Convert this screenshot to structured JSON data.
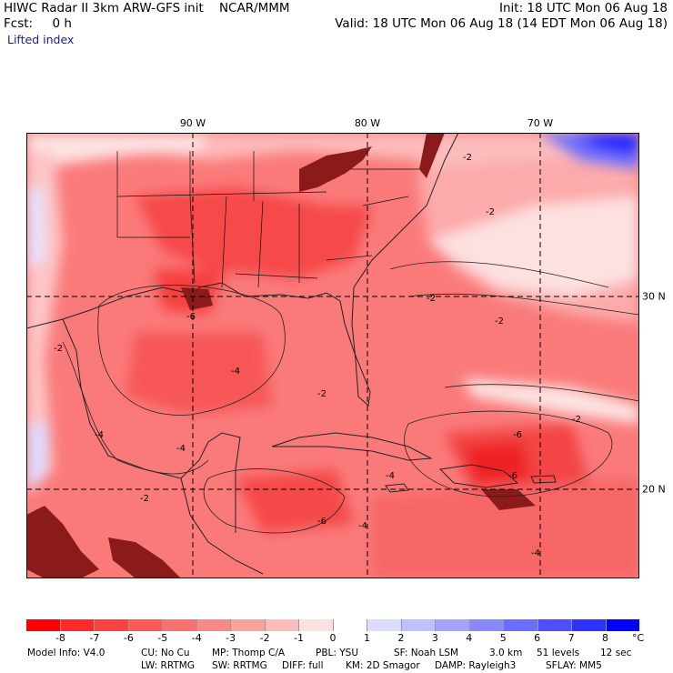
{
  "header": {
    "title_left": "HIWC Radar II 3km ARW-GFS init    NCAR/MMM",
    "forecast": "Fcst:     0 h",
    "field_name": "Lifted index",
    "init": "Init: 18 UTC Mon 06 Aug 18",
    "valid": "Valid: 18 UTC Mon 06 Aug 18 (14 EDT Mon 06 Aug 18)"
  },
  "map": {
    "lon_labels": [
      "90 W",
      "80 W",
      "70 W"
    ],
    "lat_labels": [
      "30 N",
      "20 N"
    ],
    "contour_labels": [
      "-2",
      "-4",
      "-6"
    ],
    "colors": {
      "deep_red": "#f52a2a",
      "red": "#f75a5a",
      "mid_red": "#fb8c8c",
      "light_red": "#fdbcbc",
      "pale_red": "#fde3e3",
      "white": "#ffffff",
      "pale_blue": "#dcdcff",
      "blue": "#6e6eff",
      "deep_blue": "#1a1aff",
      "terrain": "#8b1a1a"
    }
  },
  "colorbar": {
    "ticks": [
      "-8",
      "-7",
      "-6",
      "-5",
      "-4",
      "-3",
      "-2",
      "-1",
      "0",
      "1",
      "2",
      "3",
      "4",
      "5",
      "6",
      "7",
      "8"
    ],
    "unit": "°C",
    "colors": [
      "#ff0000",
      "#ff2a2a",
      "#fd4040",
      "#fb5858",
      "#fa7070",
      "#fb8888",
      "#fca0a0",
      "#fdbcbc",
      "#fde0e0",
      "#ffffff",
      "#dcdcff",
      "#c0c0ff",
      "#a4a4ff",
      "#8888ff",
      "#6c6cff",
      "#4e4eff",
      "#3030ff",
      "#0000ff"
    ]
  },
  "model_info": {
    "line1": [
      "Model Info: V4.0",
      "CU: No Cu",
      "MP: Thomp C/A",
      "PBL: YSU",
      "SF: Noah LSM",
      "3.0 km",
      "51 levels",
      "12 sec"
    ],
    "line2": [
      "LW: RRTMG",
      "SW: RRTMG",
      "DIFF: full",
      "KM: 2D Smagor",
      "DAMP: Rayleigh3",
      "SFLAY: MM5"
    ]
  }
}
